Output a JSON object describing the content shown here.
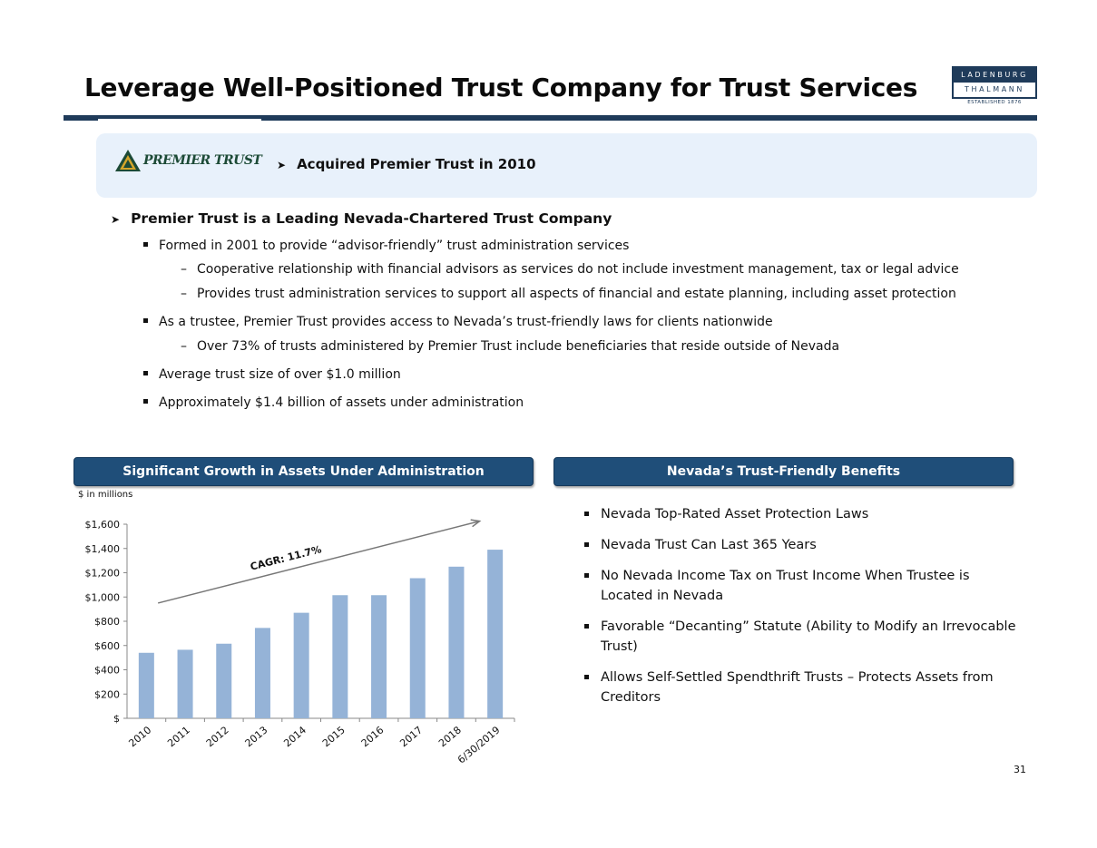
{
  "title": "Leverage Well-Positioned Trust Company for Trust Services",
  "logo": {
    "line1": "LADENBURG",
    "line2": "THALMANN",
    "established": "ESTABLISHED 1876"
  },
  "banner": {
    "logo_text": "PREMIER TRUST",
    "bullet": "Acquired Premier Trust in 2010"
  },
  "overview": {
    "heading": "Premier Trust is a Leading Nevada-Chartered Trust Company",
    "points": [
      {
        "text": "Formed in 2001 to provide “advisor-friendly” trust administration services",
        "subpoints": [
          "Cooperative relationship with financial advisors as services do not include investment management, tax or legal advice",
          "Provides trust administration services to support all aspects of financial and estate planning, including asset protection"
        ]
      },
      {
        "text": "As a trustee, Premier Trust provides access to Nevada’s trust-friendly laws for clients nationwide",
        "subpoints": [
          "Over 73% of trusts administered by Premier Trust include beneficiaries that reside outside of Nevada"
        ]
      },
      {
        "text": "Average trust size of over $1.0 million",
        "subpoints": []
      },
      {
        "text": "Approximately $1.4 billion of assets under administration",
        "subpoints": []
      }
    ]
  },
  "growth_section": {
    "header": "Significant Growth in Assets Under Administration",
    "units": "$ in millions"
  },
  "benefits_section": {
    "header": "Nevada’s Trust-Friendly Benefits",
    "items": [
      "Nevada Top-Rated Asset Protection Laws",
      "Nevada Trust Can Last 365 Years",
      "No Nevada Income Tax on Trust Income When Trustee is Located in Nevada",
      "Favorable “Decanting” Statute (Ability to Modify an Irrevocable Trust)",
      "Allows Self-Settled Spendthrift Trusts – Protects Assets from Creditors"
    ]
  },
  "chart_data": {
    "type": "bar",
    "title": "Significant Growth in Assets Under Administration",
    "ylabel": "$ in millions",
    "categories": [
      "2010",
      "2011",
      "2012",
      "2013",
      "2014",
      "2015",
      "2016",
      "2017",
      "2018",
      "6/30/2019"
    ],
    "values": [
      540,
      565,
      615,
      745,
      870,
      1015,
      1015,
      1155,
      1250,
      1390
    ],
    "ylim": [
      0,
      1600
    ],
    "yticks": [
      0,
      200,
      400,
      600,
      800,
      1000,
      1200,
      1400,
      1600
    ],
    "ytick_labels": [
      "$",
      "$200",
      "$400",
      "$600",
      "$800",
      "$1,000",
      "$1,200",
      "$1,400",
      "$1,600"
    ],
    "annotation": "CAGR: 11.7%",
    "bar_color": "#95b3d7"
  },
  "page_number": "31"
}
